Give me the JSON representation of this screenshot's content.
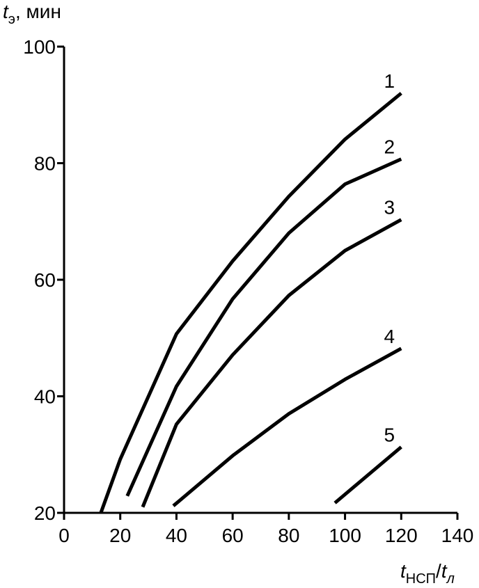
{
  "chart_data": {
    "type": "line",
    "y_label": {
      "symbol": "t",
      "subscript": "э",
      "unit": ", мин"
    },
    "x_label": {
      "symbol": "t",
      "subscript": "НСП",
      "slash": "/",
      "symbol2": "t",
      "subscript2": "л"
    },
    "xlim": [
      0,
      140
    ],
    "xticks": [
      0,
      20,
      40,
      60,
      80,
      100,
      120,
      140
    ],
    "ylim": [
      20,
      100
    ],
    "yticks": [
      20,
      40,
      60,
      80,
      100
    ],
    "series": [
      {
        "name": "1",
        "color": "#000000",
        "x": [
          13.1,
          20,
          40,
          60,
          80,
          100,
          120
        ],
        "values": [
          20,
          29.2,
          50.7,
          63.2,
          74.3,
          84.1,
          92
        ]
      },
      {
        "name": "2",
        "color": "#000000",
        "x": [
          22.5,
          40,
          60,
          80,
          100,
          120
        ],
        "values": [
          22.9,
          41.7,
          56.7,
          68,
          76.4,
          80.7
        ]
      },
      {
        "name": "3",
        "color": "#000000",
        "x": [
          28,
          40,
          60,
          80,
          100,
          120
        ],
        "values": [
          21,
          35.2,
          47.1,
          57.3,
          65,
          70.3
        ]
      },
      {
        "name": "4",
        "color": "#000000",
        "x": [
          38.9,
          60,
          80,
          100,
          120
        ],
        "values": [
          21.2,
          29.8,
          37,
          42.9,
          48.2
        ]
      },
      {
        "name": "5",
        "color": "#000000",
        "x": [
          96.4,
          120
        ],
        "values": [
          21.7,
          31.3
        ]
      }
    ]
  }
}
